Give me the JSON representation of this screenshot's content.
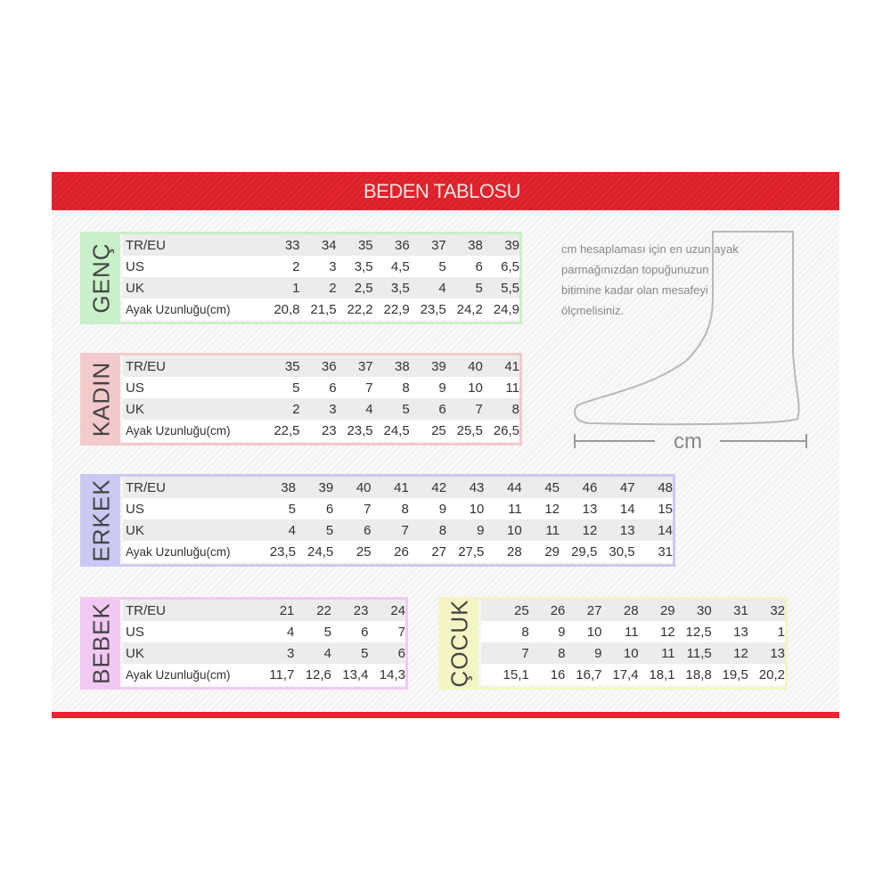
{
  "title": "BEDEN TABLOSU",
  "tables": [
    {
      "id": "genc",
      "label": "GENÇ",
      "border": "#c9f0c9",
      "rows": [
        {
          "label": "TR/EU",
          "values": [
            "33",
            "34",
            "35",
            "36",
            "37",
            "38",
            "39"
          ]
        },
        {
          "label": "US",
          "values": [
            "2",
            "3",
            "3,5",
            "4,5",
            "5",
            "6",
            "6,5"
          ]
        },
        {
          "label": "UK",
          "values": [
            "1",
            "2",
            "2,5",
            "3,5",
            "4",
            "5",
            "5,5"
          ]
        },
        {
          "label": "Ayak Uzunluğu(cm)",
          "values": [
            "20,8",
            "21,5",
            "22,2",
            "22,9",
            "23,5",
            "24,2",
            "24,9"
          ]
        }
      ]
    },
    {
      "id": "kadin",
      "label": "KADIN",
      "border": "#f3c9cb",
      "rows": [
        {
          "label": "TR/EU",
          "values": [
            "35",
            "36",
            "37",
            "38",
            "39",
            "40",
            "41"
          ]
        },
        {
          "label": "US",
          "values": [
            "5",
            "6",
            "7",
            "8",
            "9",
            "10",
            "11"
          ]
        },
        {
          "label": "UK",
          "values": [
            "2",
            "3",
            "4",
            "5",
            "6",
            "7",
            "8"
          ]
        },
        {
          "label": "Ayak Uzunluğu(cm)",
          "values": [
            "22,5",
            "23",
            "23,5",
            "24,5",
            "25",
            "25,5",
            "26,5"
          ]
        }
      ]
    },
    {
      "id": "erkek",
      "label": "ERKEK",
      "border": "#cac9f3",
      "rows": [
        {
          "label": "TR/EU",
          "values": [
            "38",
            "39",
            "40",
            "41",
            "42",
            "43",
            "44",
            "45",
            "46",
            "47",
            "48"
          ]
        },
        {
          "label": "US",
          "values": [
            "5",
            "6",
            "7",
            "8",
            "9",
            "10",
            "11",
            "12",
            "13",
            "14",
            "15"
          ]
        },
        {
          "label": "UK",
          "values": [
            "4",
            "5",
            "6",
            "7",
            "8",
            "9",
            "10",
            "11",
            "12",
            "13",
            "14"
          ]
        },
        {
          "label": "Ayak Uzunluğu(cm)",
          "values": [
            "23,5",
            "24,5",
            "25",
            "26",
            "27",
            "27,5",
            "28",
            "29",
            "29,5",
            "30,5",
            "31"
          ]
        }
      ]
    },
    {
      "id": "bebek",
      "label": "BEBEK",
      "border": "#f2c9f2",
      "rows": [
        {
          "label": "TR/EU",
          "values": [
            "21",
            "22",
            "23",
            "24"
          ]
        },
        {
          "label": "US",
          "values": [
            "4",
            "5",
            "6",
            "7"
          ]
        },
        {
          "label": "UK",
          "values": [
            "3",
            "4",
            "5",
            "6"
          ]
        },
        {
          "label": "Ayak Uzunluğu(cm)",
          "values": [
            "11,7",
            "12,6",
            "13,4",
            "14,3"
          ]
        }
      ]
    },
    {
      "id": "cocuk",
      "label": "ÇOCUK",
      "border": "#f5f5c4",
      "rows": [
        {
          "label": "",
          "values": [
            "25",
            "26",
            "27",
            "28",
            "29",
            "30",
            "31",
            "32"
          ]
        },
        {
          "label": "",
          "values": [
            "8",
            "9",
            "10",
            "11",
            "12",
            "12,5",
            "13",
            "1"
          ]
        },
        {
          "label": "",
          "values": [
            "7",
            "8",
            "9",
            "10",
            "11",
            "11,5",
            "12",
            "13"
          ]
        },
        {
          "label": "",
          "values": [
            "15,1",
            "16",
            "16,7",
            "17,4",
            "18,1",
            "18,8",
            "19,5",
            "20,2"
          ]
        }
      ]
    }
  ],
  "note": "cm hesaplaması için en uzun ayak parmağınızdan topuğunuzun bitimine kadar olan mesafeyi ölçmelisiniz.",
  "foot_label": "cm"
}
